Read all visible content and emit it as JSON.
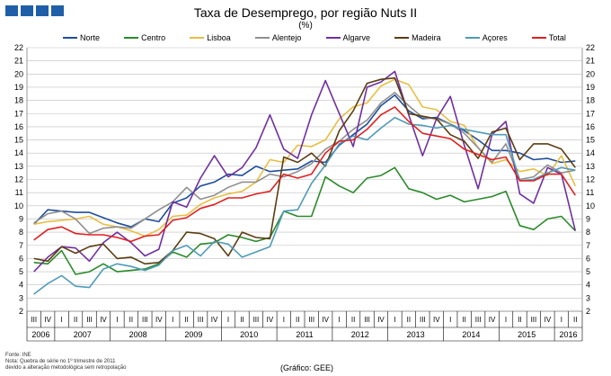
{
  "header": {
    "title": "Taxa de Desemprego, por região Nuts II",
    "subtitle": "(%)"
  },
  "colors": {
    "logo": "#1f5fa8",
    "grid": "#bfbfbf",
    "axis": "#808080"
  },
  "chart_data": {
    "type": "line",
    "title": "Taxa de Desemprego, por região Nuts II",
    "ylabel": "%",
    "ylim": [
      2,
      22
    ],
    "yticks": [
      2,
      3,
      4,
      5,
      6,
      7,
      8,
      9,
      10,
      11,
      12,
      13,
      14,
      15,
      16,
      17,
      18,
      19,
      20,
      21,
      22
    ],
    "grid": true,
    "legend_position": "top",
    "categories": [
      "III",
      "IV",
      "I",
      "II",
      "III",
      "IV",
      "I",
      "II",
      "III",
      "IV",
      "I",
      "II",
      "III",
      "IV",
      "I",
      "II",
      "III",
      "IV",
      "I",
      "II",
      "III",
      "IV",
      "I",
      "II",
      "III",
      "IV",
      "I",
      "II",
      "III",
      "IV",
      "I",
      "II",
      "III",
      "IV",
      "I",
      "II",
      "III",
      "IV",
      "I",
      "II"
    ],
    "year_labels": [
      "2006",
      "2007",
      "2008",
      "2009",
      "2010",
      "2011",
      "2012",
      "2013",
      "2014",
      "2015",
      "2016"
    ],
    "year_quarter_counts": [
      2,
      4,
      4,
      4,
      4,
      4,
      4,
      4,
      4,
      4,
      2
    ],
    "series": [
      {
        "name": "Norte",
        "color": "#1f4e9c",
        "values": [
          8.6,
          9.7,
          9.6,
          9.5,
          9.5,
          9.1,
          8.7,
          8.4,
          9.0,
          8.8,
          10.2,
          10.6,
          11.5,
          11.8,
          12.4,
          12.3,
          13.0,
          12.6,
          12.7,
          12.8,
          13.4,
          13.3,
          14.6,
          15.4,
          16.2,
          17.6,
          18.4,
          17.2,
          16.6,
          16.7,
          16.2,
          15.7,
          15.0,
          14.2,
          14.2,
          14.0,
          13.5,
          13.6,
          13.3,
          13.4
        ]
      },
      {
        "name": "Centro",
        "color": "#2a8a2a",
        "values": [
          5.7,
          5.6,
          6.6,
          4.8,
          5.0,
          5.6,
          5.0,
          5.1,
          5.2,
          5.6,
          6.5,
          6.1,
          7.1,
          7.2,
          7.8,
          7.6,
          7.3,
          7.6,
          9.6,
          9.2,
          9.2,
          12.2,
          11.5,
          11.0,
          12.1,
          12.3,
          12.9,
          11.3,
          11.0,
          10.5,
          10.8,
          10.3,
          10.5,
          10.7,
          11.1,
          8.5,
          8.2,
          9.0,
          9.2,
          8.1
        ]
      },
      {
        "name": "Lisboa",
        "color": "#e8be42",
        "values": [
          8.6,
          8.8,
          8.9,
          9.0,
          9.2,
          8.6,
          8.4,
          8.1,
          7.7,
          8.2,
          9.2,
          9.3,
          10.1,
          10.6,
          10.9,
          11.1,
          11.8,
          13.5,
          13.3,
          14.6,
          14.5,
          15.0,
          16.6,
          17.5,
          17.8,
          19.1,
          19.6,
          19.2,
          17.5,
          17.3,
          16.4,
          16.1,
          14.4,
          13.2,
          13.5,
          12.6,
          12.8,
          12.3,
          13.8,
          11.5
        ]
      },
      {
        "name": "Alentejo",
        "color": "#8f8f8f",
        "values": [
          8.7,
          9.4,
          9.6,
          9.0,
          7.9,
          8.3,
          8.4,
          8.3,
          9.0,
          9.7,
          10.3,
          11.4,
          10.5,
          10.8,
          11.4,
          11.8,
          11.8,
          12.4,
          12.2,
          12.6,
          13.2,
          14.3,
          14.9,
          15.8,
          16.5,
          17.8,
          18.6,
          17.6,
          16.7,
          16.6,
          16.2,
          15.5,
          14.4,
          13.3,
          14.7,
          12.0,
          12.2,
          13.1,
          12.5,
          12.7
        ]
      },
      {
        "name": "Algarve",
        "color": "#7030a0",
        "values": [
          5.0,
          6.1,
          6.9,
          6.8,
          5.8,
          7.2,
          8.0,
          7.2,
          6.2,
          6.7,
          10.3,
          9.9,
          12.1,
          13.8,
          12.2,
          12.9,
          14.4,
          16.9,
          14.3,
          13.6,
          16.9,
          19.5,
          17.0,
          14.5,
          19.0,
          19.4,
          20.2,
          16.9,
          13.8,
          16.6,
          18.3,
          14.6,
          11.3,
          15.4,
          16.4,
          10.9,
          10.2,
          12.9,
          12.4,
          8.1
        ]
      },
      {
        "name": "Madeira",
        "color": "#5c3d11",
        "values": [
          6.0,
          5.8,
          6.9,
          6.4,
          6.9,
          7.1,
          6.0,
          6.1,
          5.6,
          5.7,
          6.6,
          8.0,
          7.9,
          7.5,
          6.2,
          8.0,
          7.6,
          7.5,
          13.7,
          13.3,
          14.0,
          13.0,
          15.7,
          17.2,
          19.3,
          19.6,
          19.7,
          17.0,
          16.8,
          16.6,
          15.4,
          14.9,
          13.6,
          15.6,
          15.9,
          13.5,
          14.7,
          14.7,
          14.3,
          12.9
        ]
      },
      {
        "name": "Açores",
        "color": "#4f9bb8",
        "values": [
          3.3,
          4.1,
          4.7,
          3.9,
          3.8,
          5.2,
          5.6,
          5.4,
          5.1,
          5.5,
          6.6,
          7.0,
          6.2,
          7.3,
          7.1,
          6.1,
          6.5,
          6.9,
          9.6,
          9.7,
          11.7,
          13.1,
          14.7,
          15.3,
          15.0,
          15.9,
          16.7,
          16.2,
          16.1,
          15.9,
          16.1,
          15.8,
          15.6,
          15.4,
          15.4,
          11.9,
          12.0,
          12.5,
          12.9,
          12.7
        ]
      },
      {
        "name": "Total",
        "color": "#e02020",
        "values": [
          7.4,
          8.2,
          8.4,
          7.9,
          7.8,
          7.8,
          7.6,
          7.3,
          7.7,
          7.8,
          8.9,
          9.1,
          9.8,
          10.1,
          10.6,
          10.6,
          10.9,
          11.1,
          12.4,
          12.1,
          12.4,
          14.0,
          14.9,
          15.0,
          15.8,
          16.9,
          17.5,
          16.4,
          15.5,
          15.3,
          15.1,
          14.3,
          13.9,
          13.5,
          13.7,
          11.9,
          11.9,
          12.4,
          12.4,
          10.8
        ]
      }
    ]
  },
  "footnotes": {
    "line1": "Fonte: INE",
    "line2": "Nota: Quebra de série no 1º trimestre de 2011",
    "line3": "devido a alteração metodológica sem retropolação"
  },
  "credit": "(Gráfico: GEE)"
}
